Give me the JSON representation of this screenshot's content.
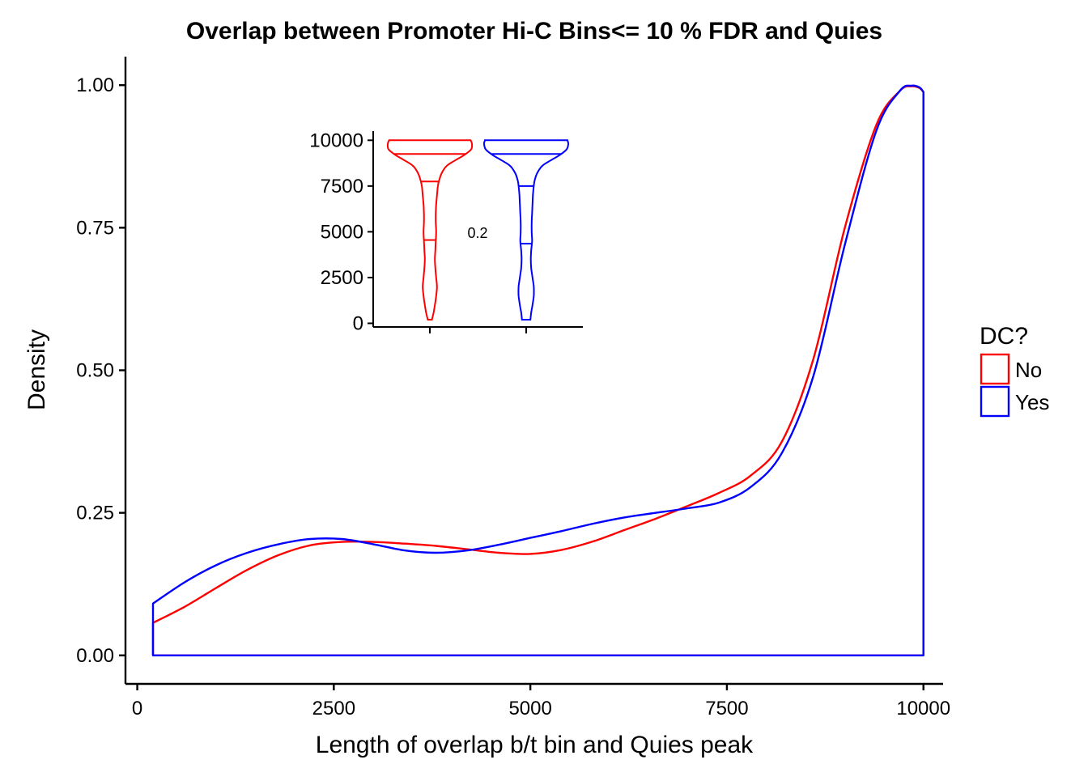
{
  "chart_data": [
    {
      "type": "density",
      "title": "Overlap between Promoter Hi-C Bins<= 10 % FDR and Quies",
      "xlabel": "Length of overlap b/t bin and Quies peak",
      "ylabel": "Density",
      "xlim": [
        -150,
        10250
      ],
      "ylim": [
        -0.05,
        1.05
      ],
      "x_ticks": [
        0,
        2500,
        5000,
        7500,
        10000
      ],
      "x_tick_labels": [
        "0",
        "2500",
        "5000",
        "7500",
        "10000"
      ],
      "y_ticks": [
        0,
        0.25,
        0.5,
        0.75,
        1.0
      ],
      "y_tick_labels": [
        "0.00",
        "0.25",
        "0.50",
        "0.75",
        "1.00"
      ],
      "grid": false,
      "legend": {
        "title": "DC?",
        "position": "right",
        "entries": [
          {
            "label": "No",
            "color": "#ff0000"
          },
          {
            "label": "Yes",
            "color": "#0000ff"
          }
        ]
      },
      "series": [
        {
          "name": "No",
          "color": "#ff0000",
          "x": [
            200,
            600,
            1000,
            1400,
            1800,
            2200,
            2600,
            3000,
            3400,
            3800,
            4200,
            4600,
            5000,
            5400,
            5800,
            6200,
            6600,
            7000,
            7400,
            7800,
            8200,
            8600,
            9000,
            9400,
            9700,
            9850,
            9950,
            10000
          ],
          "y": [
            0.057,
            0.085,
            0.118,
            0.15,
            0.176,
            0.193,
            0.199,
            0.199,
            0.196,
            0.192,
            0.186,
            0.18,
            0.178,
            0.185,
            0.2,
            0.22,
            0.24,
            0.262,
            0.285,
            0.315,
            0.375,
            0.52,
            0.75,
            0.93,
            0.99,
            0.998,
            0.995,
            0.988
          ]
        },
        {
          "name": "Yes",
          "color": "#0000ff",
          "x": [
            200,
            600,
            1000,
            1400,
            1800,
            2200,
            2600,
            3000,
            3400,
            3800,
            4200,
            4600,
            5000,
            5400,
            5800,
            6200,
            6600,
            7000,
            7400,
            7800,
            8200,
            8600,
            9000,
            9400,
            9700,
            9850,
            9950,
            10000
          ],
          "y": [
            0.091,
            0.128,
            0.158,
            0.18,
            0.195,
            0.204,
            0.204,
            0.195,
            0.184,
            0.18,
            0.184,
            0.194,
            0.206,
            0.218,
            0.231,
            0.242,
            0.25,
            0.258,
            0.268,
            0.295,
            0.355,
            0.49,
            0.72,
            0.92,
            0.99,
            0.999,
            0.996,
            0.988
          ]
        }
      ]
    },
    {
      "type": "violin",
      "inset": true,
      "ylim": [
        -200,
        10500
      ],
      "y_ticks": [
        0,
        2500,
        5000,
        7500,
        10000
      ],
      "y_tick_labels": [
        "0",
        "2500",
        "5000",
        "7500",
        "10000"
      ],
      "x_tick_labels": [
        "",
        ""
      ],
      "annotation": "0.2",
      "groups": [
        {
          "name": "No",
          "color": "#ff0000",
          "quantiles": [
            4550,
            7750,
            9250
          ],
          "profile_y": [
            200,
            600,
            1000,
            1500,
            2000,
            2500,
            3000,
            3500,
            4000,
            4500,
            5000,
            5500,
            6000,
            6500,
            7000,
            7500,
            7800,
            8200,
            8600,
            8900,
            9200,
            9500,
            9800,
            10000
          ],
          "profile_w": [
            0.05,
            0.09,
            0.12,
            0.15,
            0.17,
            0.15,
            0.13,
            0.12,
            0.13,
            0.14,
            0.15,
            0.14,
            0.14,
            0.15,
            0.17,
            0.19,
            0.22,
            0.28,
            0.4,
            0.6,
            0.82,
            0.98,
            1.0,
            0.97
          ]
        },
        {
          "name": "Yes",
          "color": "#0000ff",
          "quantiles": [
            4350,
            7500,
            9250
          ],
          "profile_y": [
            200,
            600,
            1000,
            1500,
            2000,
            2500,
            3000,
            3500,
            4000,
            4500,
            5000,
            5500,
            6000,
            6500,
            7000,
            7500,
            7800,
            8200,
            8600,
            8900,
            9200,
            9500,
            9800,
            10000
          ],
          "profile_w": [
            0.1,
            0.12,
            0.15,
            0.18,
            0.18,
            0.15,
            0.12,
            0.11,
            0.12,
            0.14,
            0.13,
            0.13,
            0.14,
            0.15,
            0.16,
            0.18,
            0.2,
            0.26,
            0.38,
            0.58,
            0.8,
            0.96,
            1.0,
            0.98
          ]
        }
      ]
    }
  ]
}
